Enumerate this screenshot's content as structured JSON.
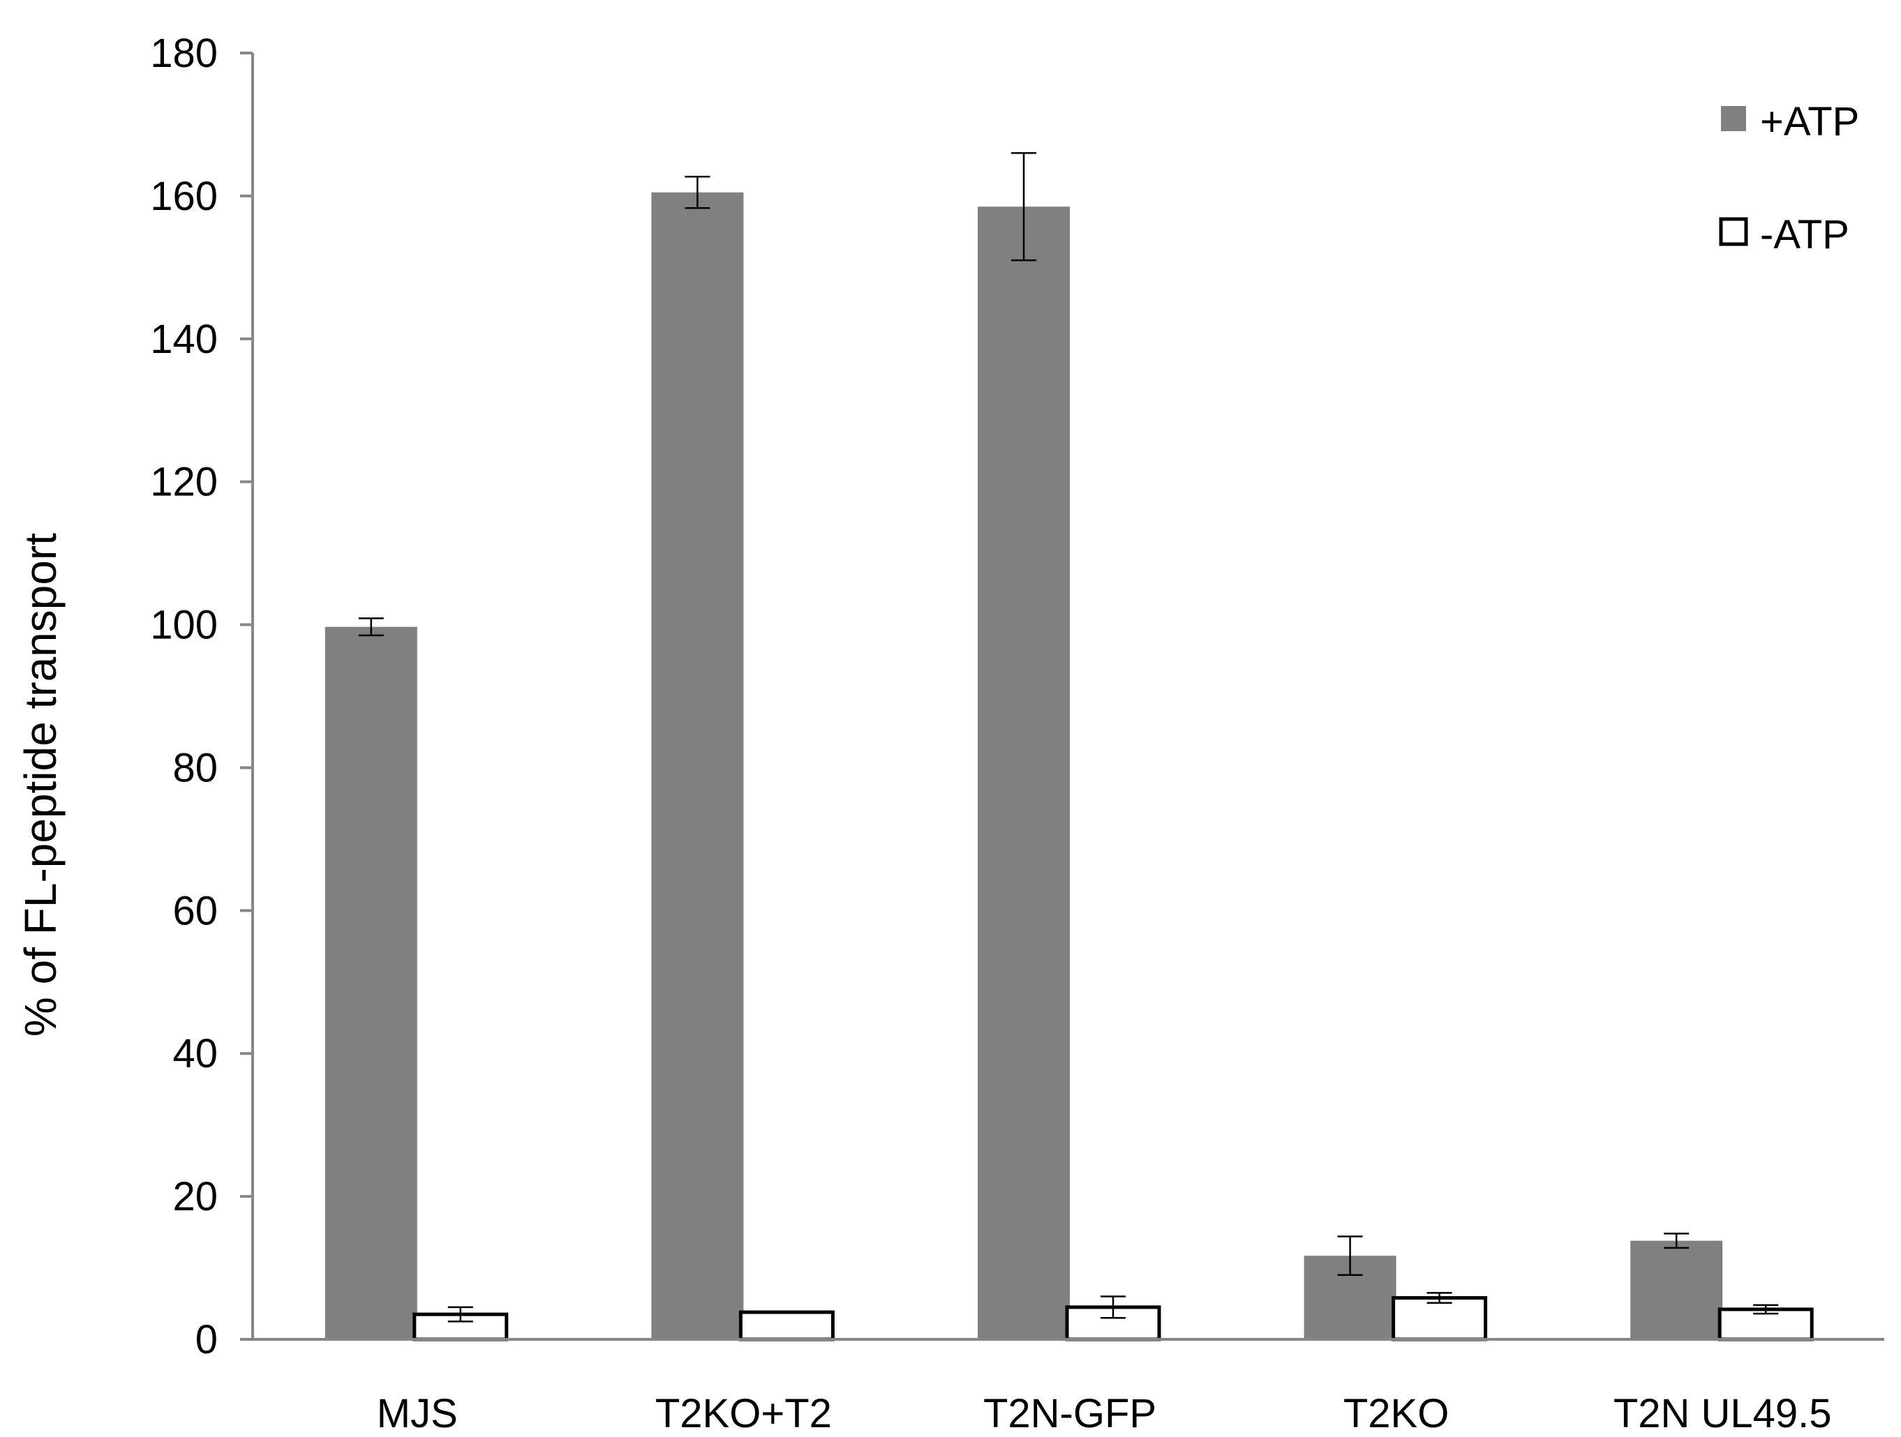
{
  "chart_data": {
    "type": "bar",
    "title": "",
    "xlabel": "",
    "ylabel": "% of FL-peptide transport",
    "ylim": [
      0,
      180
    ],
    "yticks": [
      0,
      20,
      40,
      60,
      80,
      100,
      120,
      140,
      160,
      180
    ],
    "categories": [
      "MJS",
      "T2KO+T2",
      "T2N-GFP",
      "T2KO",
      "T2N UL49.5"
    ],
    "series": [
      {
        "name": "+ATP",
        "color": "#808080",
        "values": [
          99.7,
          160.5,
          158.5,
          11.7,
          13.8
        ],
        "errors": [
          1.2,
          2.2,
          7.5,
          2.7,
          1.0
        ]
      },
      {
        "name": "-ATP",
        "color": "#ffffff",
        "values": [
          3.5,
          3.8,
          4.5,
          5.8,
          4.2
        ],
        "errors": [
          1.0,
          0,
          1.5,
          0.7,
          0.6
        ]
      }
    ],
    "grid": false,
    "legend": "top-right"
  }
}
